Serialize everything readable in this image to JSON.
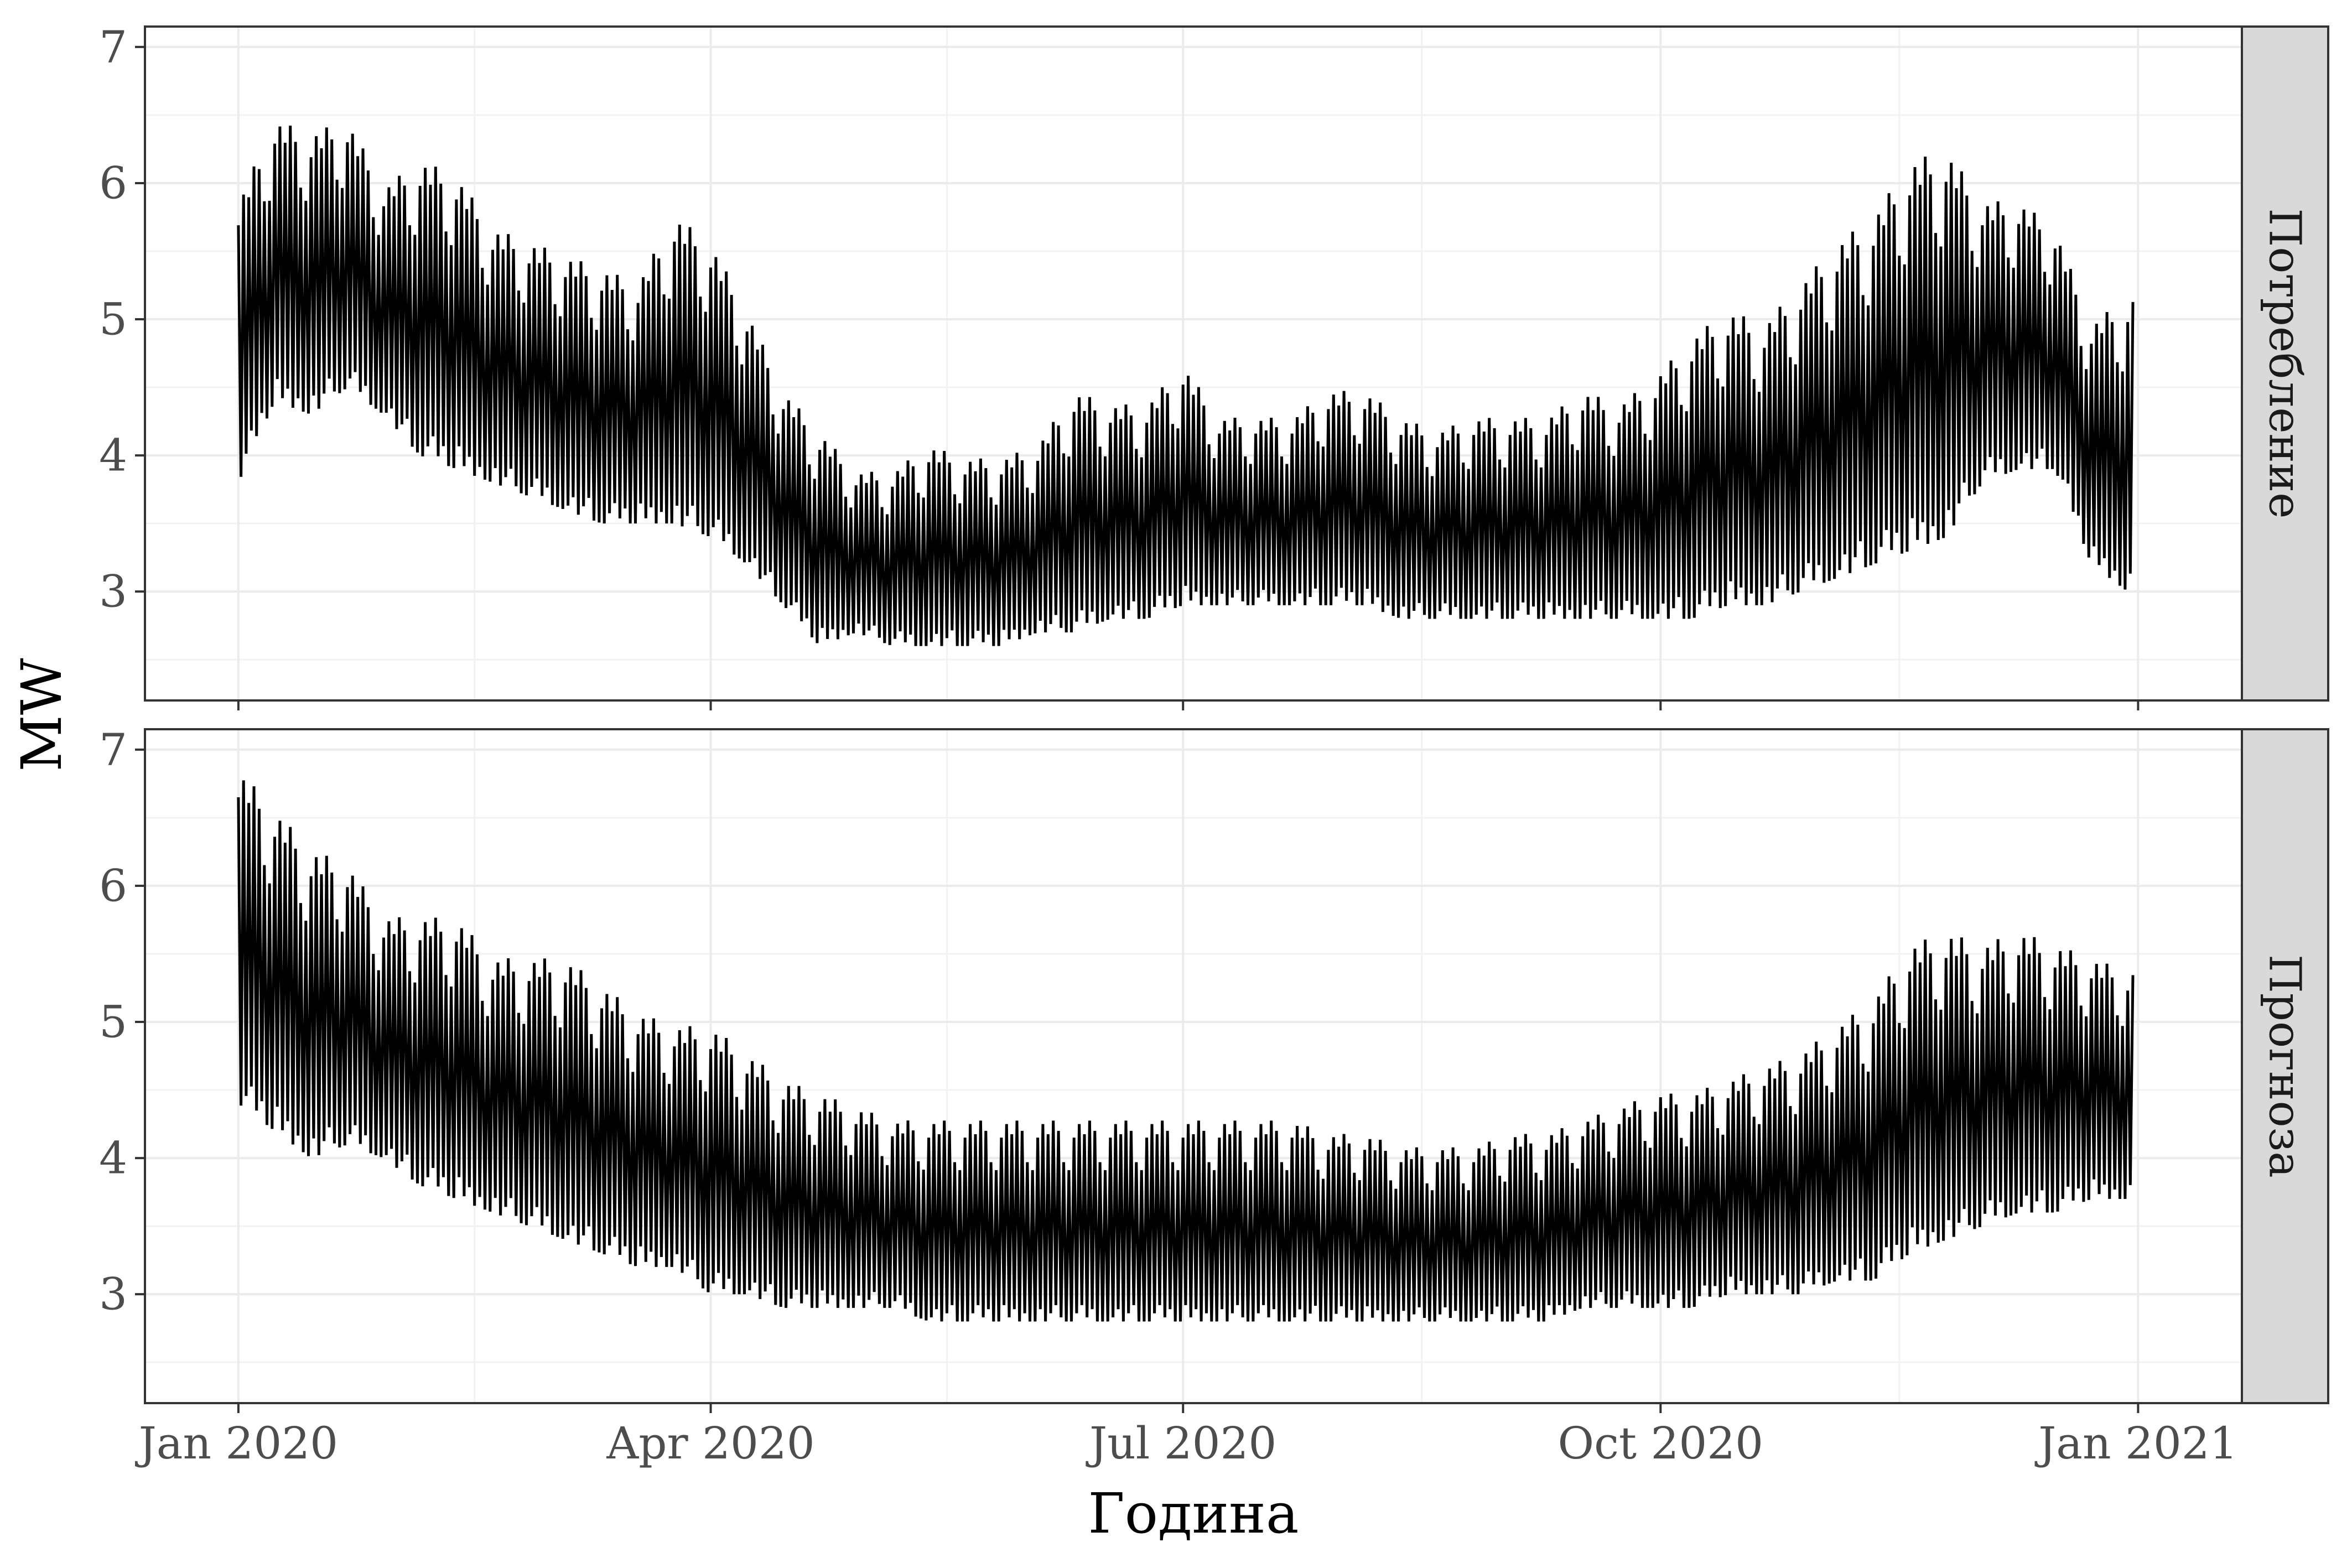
{
  "chart_data": {
    "type": "line",
    "xlabel": "Година",
    "ylabel": "MW",
    "x_ticks": [
      {
        "label": "Jan 2020",
        "day": 0
      },
      {
        "label": "Apr 2020",
        "day": 91
      },
      {
        "label": "Jul 2020",
        "day": 182
      },
      {
        "label": "Oct 2020",
        "day": 274
      },
      {
        "label": "Jan 2021",
        "day": 366
      }
    ],
    "xlim": [
      -18,
      386
    ],
    "y_ticks": [
      3,
      4,
      5,
      6,
      7
    ],
    "grid": true,
    "line_color": "#000000",
    "panels": [
      {
        "name": "Потребление",
        "ylim": [
          2.2,
          7.15
        ],
        "series_note": "hourly consumption, weekly envelope (low, high)",
        "week_start_day": [
          0,
          7,
          14,
          21,
          28,
          35,
          42,
          49,
          56,
          63,
          70,
          77,
          84,
          91,
          98,
          105,
          112,
          119,
          126,
          133,
          140,
          147,
          154,
          161,
          168,
          175,
          182,
          189,
          196,
          203,
          210,
          217,
          224,
          231,
          238,
          245,
          252,
          259,
          266,
          273,
          280,
          287,
          294,
          301,
          308,
          315,
          322,
          329,
          336,
          343,
          350,
          357,
          364
        ],
        "low": [
          3.8,
          4.4,
          4.3,
          4.5,
          4.3,
          4.0,
          3.9,
          3.8,
          3.7,
          3.6,
          3.5,
          3.5,
          3.5,
          3.4,
          3.2,
          2.9,
          2.6,
          2.7,
          2.6,
          2.6,
          2.6,
          2.6,
          2.7,
          2.7,
          2.8,
          2.8,
          2.9,
          2.9,
          2.9,
          2.9,
          2.9,
          2.9,
          2.8,
          2.8,
          2.8,
          2.8,
          2.8,
          2.8,
          2.8,
          2.8,
          2.8,
          2.9,
          2.9,
          3.0,
          3.1,
          3.2,
          3.3,
          3.4,
          3.8,
          3.9,
          3.9,
          3.2,
          3.0
        ],
        "high": [
          5.9,
          6.5,
          6.4,
          6.5,
          6.0,
          6.2,
          6.1,
          5.7,
          5.6,
          5.5,
          5.4,
          5.3,
          5.8,
          5.6,
          5.1,
          4.5,
          4.2,
          3.9,
          3.9,
          4.1,
          4.0,
          4.0,
          4.1,
          4.5,
          4.4,
          4.4,
          4.7,
          4.3,
          4.3,
          4.3,
          4.5,
          4.5,
          4.3,
          4.2,
          4.3,
          4.3,
          4.3,
          4.5,
          4.4,
          4.6,
          4.9,
          5.1,
          5.0,
          5.3,
          5.6,
          5.8,
          6.2,
          6.3,
          5.9,
          5.9,
          5.7,
          5.0,
          5.2
        ]
      },
      {
        "name": "Прогноза",
        "ylim": [
          2.2,
          7.15
        ],
        "series_note": "hourly forecast, weekly envelope (low, high)",
        "week_start_day": [
          0,
          7,
          14,
          21,
          28,
          35,
          42,
          49,
          56,
          63,
          70,
          77,
          84,
          91,
          98,
          105,
          112,
          119,
          126,
          133,
          140,
          147,
          154,
          161,
          168,
          175,
          182,
          189,
          196,
          203,
          210,
          217,
          224,
          231,
          238,
          245,
          252,
          259,
          266,
          273,
          280,
          287,
          294,
          301,
          308,
          315,
          322,
          329,
          336,
          343,
          350,
          357,
          364
        ],
        "low": [
          4.4,
          4.2,
          4.0,
          4.1,
          4.0,
          3.8,
          3.7,
          3.6,
          3.5,
          3.4,
          3.3,
          3.2,
          3.2,
          3.0,
          3.0,
          2.9,
          2.9,
          2.9,
          2.9,
          2.8,
          2.8,
          2.8,
          2.8,
          2.8,
          2.8,
          2.8,
          2.8,
          2.8,
          2.8,
          2.8,
          2.8,
          2.8,
          2.8,
          2.8,
          2.8,
          2.8,
          2.8,
          2.9,
          2.9,
          2.9,
          2.9,
          3.0,
          3.0,
          3.0,
          3.1,
          3.1,
          3.3,
          3.4,
          3.5,
          3.6,
          3.6,
          3.7,
          3.7
        ],
        "high": [
          6.9,
          6.6,
          6.3,
          6.2,
          5.8,
          5.8,
          5.8,
          5.5,
          5.5,
          5.5,
          5.3,
          5.1,
          5.0,
          5.0,
          4.8,
          4.6,
          4.5,
          4.4,
          4.3,
          4.3,
          4.3,
          4.3,
          4.3,
          4.3,
          4.3,
          4.3,
          4.3,
          4.3,
          4.3,
          4.3,
          4.2,
          4.2,
          4.1,
          4.1,
          4.1,
          4.2,
          4.2,
          4.3,
          4.4,
          4.5,
          4.5,
          4.6,
          4.7,
          4.8,
          5.0,
          5.2,
          5.6,
          5.7,
          5.6,
          5.7,
          5.6,
          5.5,
          5.4
        ]
      }
    ]
  }
}
